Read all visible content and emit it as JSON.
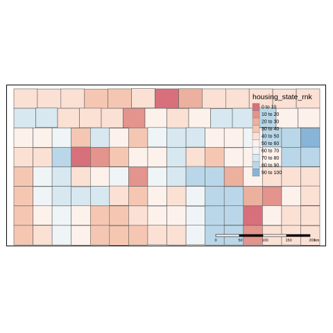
{
  "map": {
    "legend": {
      "title": "housing_state_rnk",
      "classes": [
        {
          "label": "0 to 10",
          "color": "#d7707a"
        },
        {
          "label": "10 to 20",
          "color": "#e3948d"
        },
        {
          "label": "20 to 30",
          "color": "#ecb09f"
        },
        {
          "label": "30 to 40",
          "color": "#f5c7b3"
        },
        {
          "label": "40 to 50",
          "color": "#fbe0d4"
        },
        {
          "label": "50 to 60",
          "color": "#fdf1ec"
        },
        {
          "label": "60 to 70",
          "color": "#eff4f7"
        },
        {
          "label": "70 to 80",
          "color": "#d8e8f0"
        },
        {
          "label": "80 to 90",
          "color": "#b9d7e8"
        },
        {
          "label": "90 to 100",
          "color": "#88b4d7"
        }
      ]
    },
    "scale_bar": {
      "ticks": [
        "0",
        "50",
        "100",
        "150",
        "200"
      ],
      "unit": "km"
    },
    "county_classes": [
      [
        4,
        4,
        4,
        3,
        3,
        4,
        0,
        2,
        4,
        4,
        4,
        4,
        4
      ],
      [
        7,
        7,
        4,
        4,
        4,
        1,
        5,
        4,
        5,
        7,
        7,
        8,
        5,
        5
      ],
      [
        5,
        5,
        6,
        3,
        7,
        5,
        3,
        6,
        7,
        7,
        5,
        5,
        6,
        8,
        8,
        9
      ],
      [
        4,
        4,
        8,
        0,
        1,
        3,
        5,
        5,
        7,
        4,
        3,
        5,
        5,
        5,
        8,
        8
      ],
      [
        3,
        6,
        7,
        4,
        5,
        6,
        1,
        6,
        7,
        8,
        8,
        2,
        5,
        4,
        4,
        4
      ],
      [
        3,
        6,
        7,
        7,
        7,
        4,
        3,
        5,
        4,
        6,
        8,
        8,
        2,
        1,
        5,
        4
      ],
      [
        3,
        5,
        6,
        5,
        3,
        3,
        4,
        5,
        5,
        6,
        8,
        8,
        0,
        5,
        4,
        4
      ],
      [
        3,
        4,
        6,
        5,
        3,
        3,
        3,
        4,
        4,
        6,
        8,
        8,
        1,
        4,
        4,
        4
      ]
    ]
  }
}
